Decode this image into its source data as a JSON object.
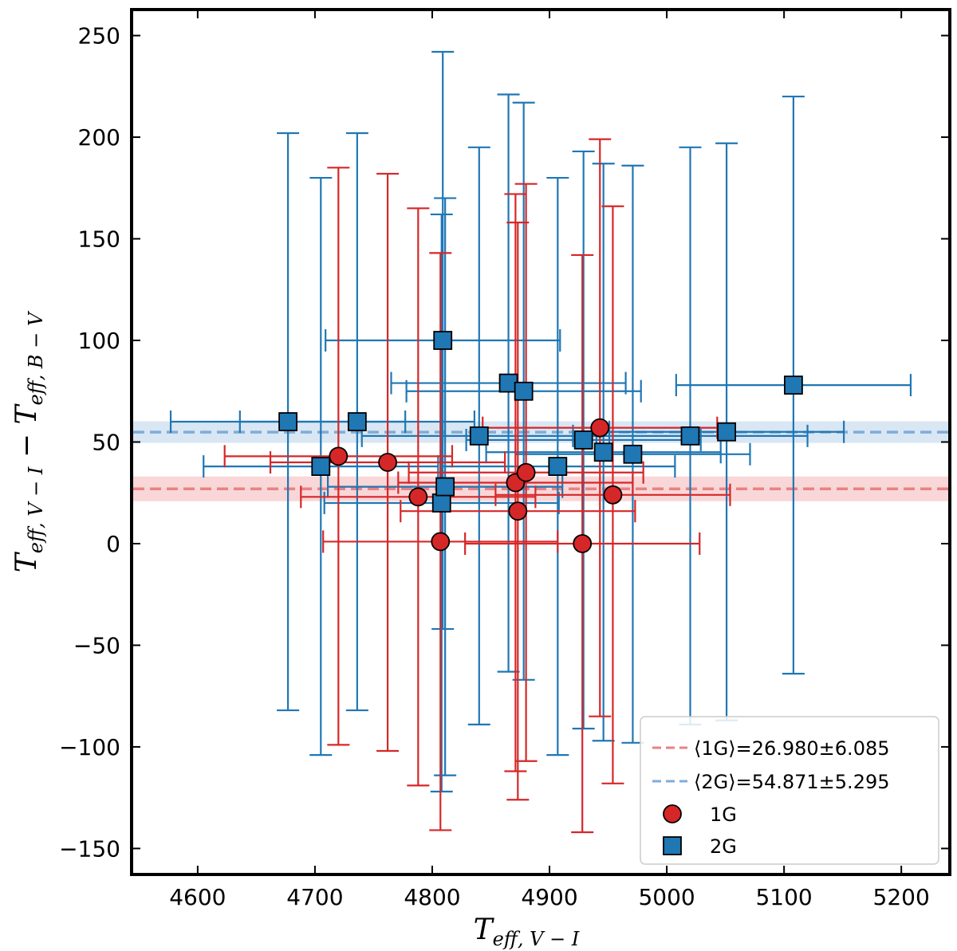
{
  "chart_data": {
    "type": "scatter",
    "title": "",
    "xlabel": {
      "main": "T",
      "sub": "eff, V − I"
    },
    "ylabel": {
      "main": "T",
      "sub1": "eff, V − I",
      "mid": " − T",
      "sub2": "eff, B − V"
    },
    "xlim": [
      4545,
      5240
    ],
    "ylim": [
      -162,
      262
    ],
    "xticks": [
      4600,
      4700,
      4800,
      4900,
      5000,
      5100,
      5200
    ],
    "yticks": [
      250,
      200,
      150,
      100,
      50,
      0,
      -50,
      -100,
      -150
    ],
    "ytick_labels": [
      "250",
      "200",
      "150",
      "100",
      "50",
      "0",
      "−50",
      "−100",
      "−150"
    ],
    "colors": {
      "1G": "#d62728",
      "2G": "#1f77b4",
      "mean1G": "#e88383",
      "mean2G": "#7fadd6",
      "band1G": "#f7cccd",
      "band2G": "#cfe0f0"
    },
    "series": [
      {
        "name": "1G",
        "marker": "circle",
        "points": [
          {
            "x": 4720,
            "y": 43,
            "xerr": 97,
            "yerr": 142
          },
          {
            "x": 4762,
            "y": 40,
            "xerr": 100,
            "yerr": 142
          },
          {
            "x": 4788,
            "y": 23,
            "xerr": 100,
            "yerr": 142
          },
          {
            "x": 4807,
            "y": 1,
            "xerr": 100,
            "yerr": 142
          },
          {
            "x": 4871,
            "y": 30,
            "xerr": 100,
            "yerr": 142
          },
          {
            "x": 4873,
            "y": 16,
            "xerr": 100,
            "yerr": 142
          },
          {
            "x": 4880,
            "y": 35,
            "xerr": 100,
            "yerr": 142
          },
          {
            "x": 4928,
            "y": 0,
            "xerr": 100,
            "yerr": 142
          },
          {
            "x": 4943,
            "y": 57,
            "xerr": 100,
            "yerr": 142
          },
          {
            "x": 4954,
            "y": 24,
            "xerr": 100,
            "yerr": 142
          }
        ]
      },
      {
        "name": "2G",
        "marker": "square",
        "points": [
          {
            "x": 4677,
            "y": 60,
            "xerr": 100,
            "yerr": 142
          },
          {
            "x": 4705,
            "y": 38,
            "xerr": 100,
            "yerr": 142
          },
          {
            "x": 4736,
            "y": 60,
            "xerr": 100,
            "yerr": 142
          },
          {
            "x": 4808,
            "y": 20,
            "xerr": 100,
            "yerr": 142
          },
          {
            "x": 4809,
            "y": 100,
            "xerr": 100,
            "yerr": 142
          },
          {
            "x": 4811,
            "y": 28,
            "xerr": 100,
            "yerr": 142
          },
          {
            "x": 4840,
            "y": 53,
            "xerr": 100,
            "yerr": 142
          },
          {
            "x": 4865,
            "y": 79,
            "xerr": 100,
            "yerr": 142
          },
          {
            "x": 4878,
            "y": 75,
            "xerr": 100,
            "yerr": 142
          },
          {
            "x": 4907,
            "y": 38,
            "xerr": 100,
            "yerr": 142
          },
          {
            "x": 4929,
            "y": 51,
            "xerr": 100,
            "yerr": 142
          },
          {
            "x": 4946,
            "y": 45,
            "xerr": 100,
            "yerr": 142
          },
          {
            "x": 4971,
            "y": 44,
            "xerr": 100,
            "yerr": 142
          },
          {
            "x": 5020,
            "y": 53,
            "xerr": 100,
            "yerr": 142
          },
          {
            "x": 5051,
            "y": 55,
            "xerr": 100,
            "yerr": 142
          },
          {
            "x": 5108,
            "y": 78,
            "xerr": 100,
            "yerr": 142
          }
        ]
      }
    ],
    "mean_lines": [
      {
        "name": "1G",
        "mean": 26.98,
        "err": 6.085,
        "label": "⟨1G⟩=26.980±6.085"
      },
      {
        "name": "2G",
        "mean": 54.871,
        "err": 5.295,
        "label": "⟨2G⟩=54.871±5.295"
      }
    ],
    "legend": {
      "position": "lower-right",
      "entries": [
        "⟨1G⟩=26.980±6.085",
        "⟨2G⟩=54.871±5.295",
        "1G",
        "2G"
      ]
    }
  }
}
